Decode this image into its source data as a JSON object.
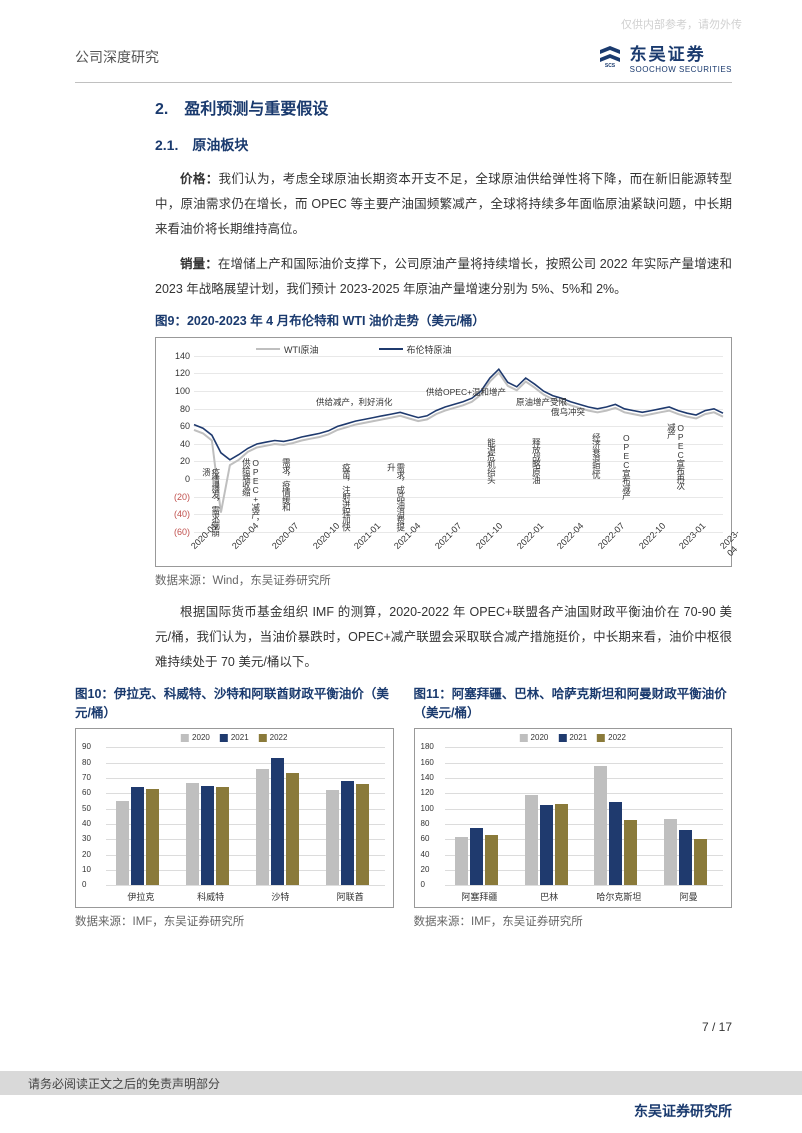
{
  "watermark": "仅供内部参考，请勿外传",
  "header": {
    "title": "公司深度研究",
    "logo_cn": "东吴证券",
    "logo_en": "SOOCHOW SECURITIES"
  },
  "section": {
    "h2": "2.　盈利预测与重要假设",
    "h3": "2.1.　原油板块",
    "p1_label": "价格：",
    "p1": "我们认为，考虑全球原油长期资本开支不足，全球原油供给弹性将下降，而在新旧能源转型中，原油需求仍在增长，而 OPEC 等主要产油国频繁减产，全球将持续多年面临原油紧缺问题，中长期来看油价将长期维持高位。",
    "p2_label": "销量：",
    "p2": "在增储上产和国际油价支撑下，公司原油产量将持续增长，按照公司 2022 年实际产量增速和 2023 年战略展望计划，我们预计 2023-2025 年原油产量增速分别为 5%、5%和 2%。",
    "p3": "根据国际货币基金组织 IMF 的测算，2020-2022 年 OPEC+联盟各产油国财政平衡油价在 70-90 美元/桶，我们认为，当油价暴跌时，OPEC+减产联盟会采取联合减产措施挺价，中长期来看，油价中枢很难持续处于 70 美元/桶以下。"
  },
  "fig9": {
    "title": "图9：2020-2023 年 4 月布伦特和 WTI 油价走势（美元/桶）",
    "source": "数据来源：Wind，东吴证券研究所",
    "legend": {
      "wti": "WTI原油",
      "brent": "布伦特原油"
    },
    "colors": {
      "wti": "#bfbfbf",
      "brent": "#1f3a6e"
    },
    "y": {
      "min": -60,
      "max": 140,
      "ticks": [
        -60,
        -40,
        -20,
        0,
        20,
        40,
        60,
        80,
        100,
        120,
        140
      ],
      "red_below": 0
    },
    "x_labels": [
      "2020-01",
      "2020-04",
      "2020-07",
      "2020-10",
      "2021-01",
      "2021-04",
      "2021-07",
      "2021-10",
      "2022-01",
      "2022-04",
      "2022-07",
      "2022-10",
      "2023-01",
      "2023-04"
    ],
    "annotations": [
      "疫情爆发，需求端崩溃",
      "OPEC+减产，供给端收缩",
      "需求，疫情缓和",
      "供给减产，利好消化",
      "疫苗，注射进程加快",
      "需求，成品油消费提升",
      "供给OPEC+温和增产",
      "能源危机抬头",
      "原油增产受限",
      "释放战略原油",
      "俄乌冲突",
      "经济衰退担忧",
      "OPEC宣布减产",
      "OPEC宣布再次减产"
    ]
  },
  "fig10": {
    "title": "图10：伊拉克、科威特、沙特和阿联酋财政平衡油价（美元/桶）",
    "source": "数据来源：IMF，东吴证券研究所",
    "legend": [
      "2020",
      "2021",
      "2022"
    ],
    "colors": [
      "#bfbfbf",
      "#1f3a6e",
      "#8a7a3a"
    ],
    "y": {
      "min": 0,
      "max": 90,
      "step": 10
    },
    "categories": [
      "伊拉克",
      "科威特",
      "沙特",
      "阿联酋"
    ],
    "data": [
      [
        55,
        64,
        63
      ],
      [
        67,
        65,
        64
      ],
      [
        76,
        83,
        73
      ],
      [
        62,
        68,
        66
      ]
    ]
  },
  "fig11": {
    "title": "图11：阿塞拜疆、巴林、哈萨克斯坦和阿曼财政平衡油价（美元/桶）",
    "source": "数据来源：IMF，东吴证券研究所",
    "legend": [
      "2020",
      "2021",
      "2022"
    ],
    "colors": [
      "#bfbfbf",
      "#1f3a6e",
      "#8a7a3a"
    ],
    "y": {
      "min": 0,
      "max": 180,
      "step": 20
    },
    "categories": [
      "阿塞拜疆",
      "巴林",
      "哈尔克斯坦",
      "阿曼"
    ],
    "data": [
      [
        63,
        75,
        66
      ],
      [
        118,
        105,
        106
      ],
      [
        155,
        108,
        85
      ],
      [
        87,
        72,
        60
      ]
    ]
  },
  "footer": {
    "disclaimer": "请务必阅读正文之后的免责声明部分",
    "inst": "东吴证券研究所",
    "page": "7 / 17"
  }
}
